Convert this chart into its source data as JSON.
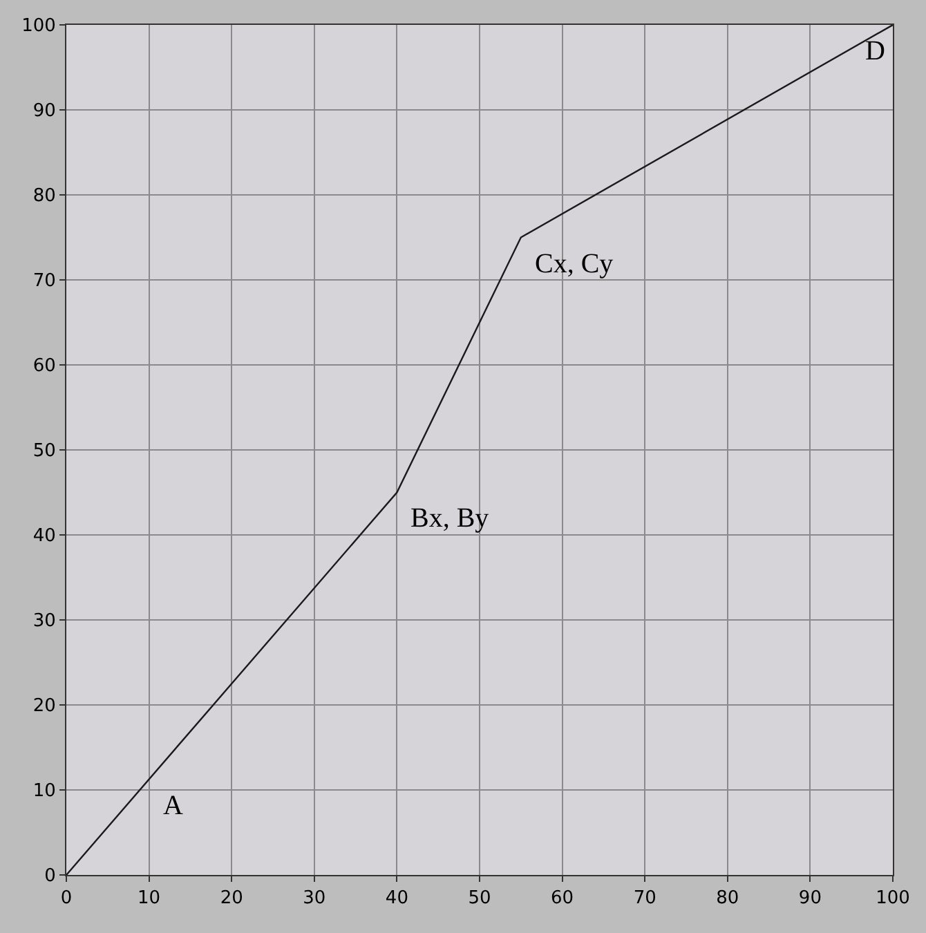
{
  "chart_data": {
    "type": "line",
    "x": [
      0,
      40,
      55,
      100
    ],
    "series": [
      {
        "color": "#1a1a1a",
        "values": [
          0,
          45,
          75,
          100
        ]
      }
    ],
    "xlim": [
      0,
      100
    ],
    "ylim": [
      0,
      100
    ],
    "xticks": [
      0,
      10,
      20,
      30,
      40,
      50,
      60,
      70,
      80,
      90,
      100
    ],
    "yticks": [
      0,
      10,
      20,
      30,
      40,
      50,
      60,
      70,
      80,
      90,
      100
    ],
    "grid": true,
    "marker": "none",
    "line_style": "solid",
    "annotations": [
      {
        "text": "A",
        "x": 10,
        "y": 11.25
      },
      {
        "text": "Bx, By",
        "x": 40,
        "y": 45
      },
      {
        "text": "Cx, Cy",
        "x": 55,
        "y": 75
      },
      {
        "text": "D",
        "x": 100,
        "y": 100
      }
    ]
  }
}
